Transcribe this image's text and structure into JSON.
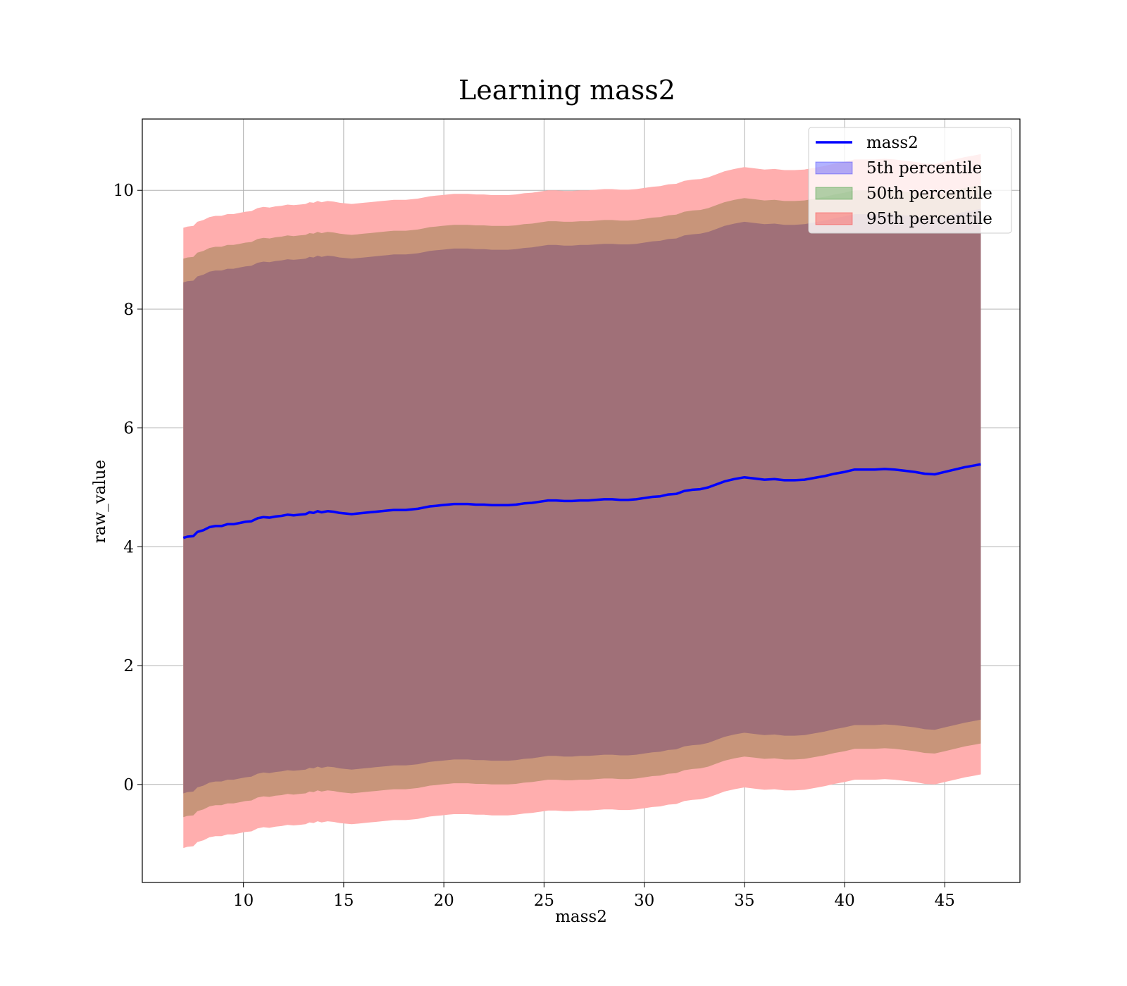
{
  "chart_data": {
    "type": "line",
    "title": "Learning mass2",
    "xlabel": "mass2",
    "ylabel": "raw_value",
    "xlim": [
      4.95,
      48.75
    ],
    "ylim": [
      -1.65,
      11.2
    ],
    "xticks": [
      10,
      15,
      20,
      25,
      30,
      35,
      40,
      45
    ],
    "yticks": [
      0,
      2,
      4,
      6,
      8,
      10
    ],
    "grid": true,
    "legend_position": "top-right",
    "x": [
      7.0,
      7.2,
      7.5,
      7.7,
      8.0,
      8.3,
      8.6,
      8.9,
      9.2,
      9.5,
      9.8,
      10.1,
      10.4,
      10.7,
      11.0,
      11.3,
      11.6,
      11.9,
      12.2,
      12.5,
      12.8,
      13.1,
      13.3,
      13.5,
      13.7,
      13.9,
      14.2,
      14.5,
      14.8,
      15.1,
      15.4,
      15.7,
      16.0,
      16.3,
      16.6,
      16.9,
      17.2,
      17.5,
      17.8,
      18.1,
      18.4,
      18.7,
      19.0,
      19.3,
      19.6,
      19.9,
      20.2,
      20.5,
      20.8,
      21.2,
      21.6,
      22.0,
      22.4,
      22.8,
      23.2,
      23.6,
      24.0,
      24.4,
      24.8,
      25.2,
      25.6,
      26.0,
      26.4,
      26.8,
      27.2,
      27.6,
      28.0,
      28.4,
      28.8,
      29.2,
      29.6,
      30.0,
      30.4,
      30.8,
      31.2,
      31.6,
      32.0,
      32.4,
      32.8,
      33.2,
      33.6,
      34.0,
      34.5,
      35.0,
      35.5,
      36.0,
      36.5,
      37.0,
      37.5,
      38.0,
      38.5,
      39.0,
      39.5,
      40.0,
      40.5,
      41.0,
      41.5,
      42.0,
      42.5,
      43.0,
      43.5,
      44.0,
      44.5,
      45.0,
      45.5,
      46.0,
      46.5,
      46.8
    ],
    "series": [
      {
        "name": "mass2",
        "color": "#0000ff",
        "values": [
          4.15,
          4.17,
          4.18,
          4.25,
          4.28,
          4.33,
          4.35,
          4.35,
          4.38,
          4.38,
          4.4,
          4.42,
          4.43,
          4.48,
          4.5,
          4.49,
          4.51,
          4.52,
          4.54,
          4.53,
          4.54,
          4.55,
          4.58,
          4.57,
          4.6,
          4.58,
          4.6,
          4.59,
          4.57,
          4.56,
          4.55,
          4.56,
          4.57,
          4.58,
          4.59,
          4.6,
          4.61,
          4.62,
          4.62,
          4.62,
          4.63,
          4.64,
          4.66,
          4.68,
          4.69,
          4.7,
          4.71,
          4.72,
          4.72,
          4.72,
          4.71,
          4.71,
          4.7,
          4.7,
          4.7,
          4.71,
          4.73,
          4.74,
          4.76,
          4.78,
          4.78,
          4.77,
          4.77,
          4.78,
          4.78,
          4.79,
          4.8,
          4.8,
          4.79,
          4.79,
          4.8,
          4.82,
          4.84,
          4.85,
          4.88,
          4.89,
          4.94,
          4.96,
          4.97,
          5.0,
          5.05,
          5.1,
          5.14,
          5.17,
          5.15,
          5.13,
          5.14,
          5.12,
          5.12,
          5.13,
          5.16,
          5.19,
          5.23,
          5.26,
          5.3,
          5.3,
          5.3,
          5.31,
          5.3,
          5.28,
          5.26,
          5.23,
          5.22,
          5.26,
          5.3,
          5.34,
          5.37,
          5.39
        ]
      }
    ],
    "bands": [
      {
        "name": "5th percentile",
        "color": "#0000ff",
        "half_width": 4.3
      },
      {
        "name": "50th percentile",
        "color": "#008000",
        "half_width": 4.7
      },
      {
        "name": "95th percentile",
        "color": "#ff0000",
        "half_width": 5.22
      }
    ],
    "fill_colors": {
      "inner": "#a07078",
      "middle": "#c8957a",
      "outer": "#ffaeae"
    }
  }
}
